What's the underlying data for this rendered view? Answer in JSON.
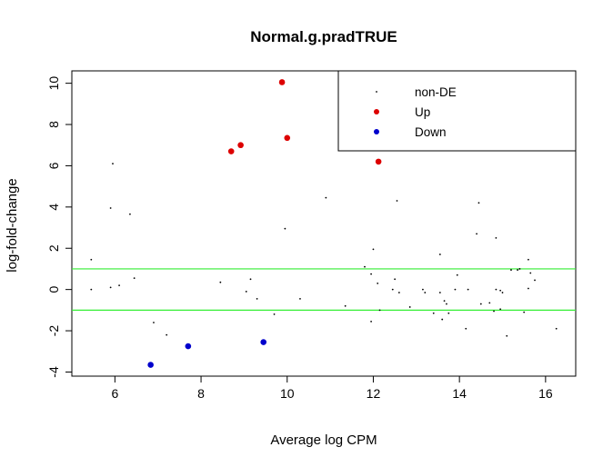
{
  "chart_data": {
    "type": "scatter",
    "title": "Normal.g.pradTRUE",
    "xlabel": "Average log CPM",
    "ylabel": "log-fold-change",
    "xlim": [
      5.0,
      16.7
    ],
    "ylim": [
      -4.2,
      10.6
    ],
    "x_ticks": [
      6,
      8,
      10,
      12,
      14,
      16
    ],
    "y_ticks": [
      -4,
      -2,
      0,
      2,
      4,
      6,
      8,
      10
    ],
    "x_tick_labels": [
      "6",
      "8",
      "10",
      "12",
      "14",
      "16"
    ],
    "y_tick_labels": [
      "-4",
      "-2",
      "0",
      "2",
      "4",
      "6",
      "8",
      "10"
    ],
    "hlines": [
      1,
      -1
    ],
    "hline_color": "#33ee33",
    "legend_position": "top-right",
    "legend": [
      {
        "label": "non-DE",
        "color": "#000000"
      },
      {
        "label": "Up",
        "color": "#dd0000"
      },
      {
        "label": "Down",
        "color": "#0000cc"
      }
    ],
    "series": [
      {
        "name": "non-DE",
        "color": "#000000",
        "points": [
          [
            5.45,
            1.45
          ],
          [
            5.45,
            0.0
          ],
          [
            5.9,
            3.95
          ],
          [
            5.95,
            6.1
          ],
          [
            5.9,
            0.1
          ],
          [
            6.1,
            0.2
          ],
          [
            6.35,
            3.65
          ],
          [
            6.45,
            0.55
          ],
          [
            6.9,
            -1.6
          ],
          [
            7.2,
            -2.2
          ],
          [
            8.45,
            0.35
          ],
          [
            9.05,
            -0.1
          ],
          [
            9.15,
            0.5
          ],
          [
            9.3,
            -0.45
          ],
          [
            9.95,
            2.95
          ],
          [
            9.7,
            -1.2
          ],
          [
            10.3,
            -0.45
          ],
          [
            10.9,
            4.45
          ],
          [
            11.35,
            -0.8
          ],
          [
            11.8,
            1.1
          ],
          [
            11.95,
            -1.55
          ],
          [
            12.0,
            1.95
          ],
          [
            11.95,
            0.75
          ],
          [
            12.1,
            0.3
          ],
          [
            12.15,
            -1.0
          ],
          [
            12.45,
            0.0
          ],
          [
            12.5,
            0.5
          ],
          [
            12.55,
            4.3
          ],
          [
            12.6,
            -0.15
          ],
          [
            12.85,
            -0.85
          ],
          [
            13.15,
            0.0
          ],
          [
            13.2,
            -0.15
          ],
          [
            13.4,
            -1.15
          ],
          [
            13.55,
            -0.15
          ],
          [
            13.55,
            1.7
          ],
          [
            13.6,
            -1.45
          ],
          [
            13.65,
            -0.55
          ],
          [
            13.7,
            -0.7
          ],
          [
            13.75,
            -1.15
          ],
          [
            13.9,
            0.0
          ],
          [
            13.95,
            0.7
          ],
          [
            14.15,
            -1.9
          ],
          [
            14.2,
            0.0
          ],
          [
            14.4,
            2.7
          ],
          [
            14.45,
            4.2
          ],
          [
            14.5,
            -0.7
          ],
          [
            14.7,
            -0.65
          ],
          [
            14.8,
            -1.05
          ],
          [
            14.85,
            2.5
          ],
          [
            14.85,
            0.0
          ],
          [
            14.95,
            -0.05
          ],
          [
            14.95,
            -0.95
          ],
          [
            15.0,
            -0.15
          ],
          [
            15.1,
            -2.25
          ],
          [
            15.2,
            0.95
          ],
          [
            15.35,
            0.95
          ],
          [
            15.4,
            1.0
          ],
          [
            15.5,
            -1.1
          ],
          [
            15.6,
            1.45
          ],
          [
            15.6,
            0.05
          ],
          [
            15.65,
            0.8
          ],
          [
            15.75,
            0.45
          ],
          [
            16.25,
            -1.9
          ]
        ]
      },
      {
        "name": "Up",
        "color": "#dd0000",
        "points": [
          [
            8.7,
            6.7
          ],
          [
            8.92,
            7.0
          ],
          [
            9.88,
            10.05
          ],
          [
            10.0,
            7.35
          ],
          [
            12.12,
            6.2
          ]
        ]
      },
      {
        "name": "Down",
        "color": "#0000cc",
        "points": [
          [
            6.83,
            -3.65
          ],
          [
            7.7,
            -2.75
          ],
          [
            9.45,
            -2.55
          ]
        ]
      }
    ]
  }
}
